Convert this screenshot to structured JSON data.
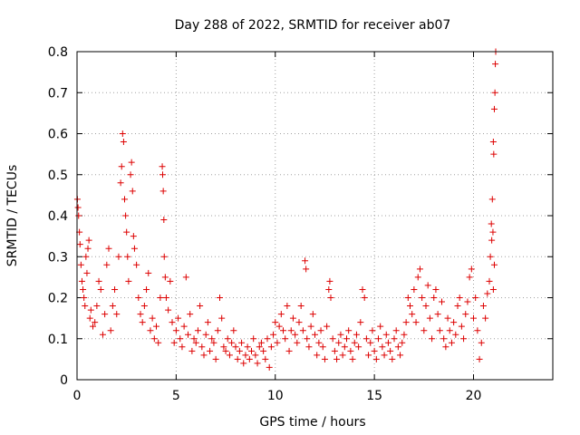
{
  "chart_data": {
    "type": "scatter",
    "title": "Day 288 of 2022, SRMTID for receiver ab07",
    "xlabel": "GPS time / hours",
    "ylabel": "SRMTID / TECUs",
    "xlim": [
      0,
      24
    ],
    "ylim": [
      0,
      0.8
    ],
    "x_ticks": [
      0,
      5,
      10,
      15,
      20
    ],
    "y_ticks": [
      0,
      0.1,
      0.2,
      0.3,
      0.4,
      0.5,
      0.6,
      0.7,
      0.8
    ],
    "x_tick_labels": [
      "0",
      "5",
      "10",
      "15",
      "20"
    ],
    "y_tick_labels": [
      "0",
      "0.1",
      "0.2",
      "0.3",
      "0.4",
      "0.5",
      "0.6",
      "0.7",
      "0.8"
    ],
    "grid": true,
    "marker": "+",
    "series": [
      {
        "name": "SRMTID",
        "color": "#dd0000",
        "points": [
          [
            0.02,
            0.44
          ],
          [
            0.05,
            0.42
          ],
          [
            0.08,
            0.4
          ],
          [
            0.12,
            0.36
          ],
          [
            0.15,
            0.33
          ],
          [
            0.2,
            0.28
          ],
          [
            0.25,
            0.24
          ],
          [
            0.3,
            0.22
          ],
          [
            0.35,
            0.2
          ],
          [
            0.4,
            0.18
          ],
          [
            0.45,
            0.3
          ],
          [
            0.5,
            0.26
          ],
          [
            0.55,
            0.32
          ],
          [
            0.6,
            0.34
          ],
          [
            0.65,
            0.15
          ],
          [
            0.7,
            0.17
          ],
          [
            0.8,
            0.13
          ],
          [
            0.9,
            0.14
          ],
          [
            1.0,
            0.18
          ],
          [
            1.1,
            0.24
          ],
          [
            1.2,
            0.22
          ],
          [
            1.3,
            0.11
          ],
          [
            1.4,
            0.16
          ],
          [
            1.5,
            0.28
          ],
          [
            1.6,
            0.32
          ],
          [
            1.7,
            0.12
          ],
          [
            1.8,
            0.18
          ],
          [
            1.9,
            0.22
          ],
          [
            2.0,
            0.16
          ],
          [
            2.1,
            0.3
          ],
          [
            2.2,
            0.48
          ],
          [
            2.25,
            0.52
          ],
          [
            2.3,
            0.6
          ],
          [
            2.35,
            0.58
          ],
          [
            2.4,
            0.44
          ],
          [
            2.45,
            0.4
          ],
          [
            2.5,
            0.36
          ],
          [
            2.55,
            0.3
          ],
          [
            2.6,
            0.24
          ],
          [
            2.7,
            0.5
          ],
          [
            2.75,
            0.53
          ],
          [
            2.8,
            0.46
          ],
          [
            2.85,
            0.35
          ],
          [
            2.9,
            0.32
          ],
          [
            3.0,
            0.28
          ],
          [
            3.1,
            0.2
          ],
          [
            3.2,
            0.16
          ],
          [
            3.3,
            0.14
          ],
          [
            3.4,
            0.18
          ],
          [
            3.5,
            0.22
          ],
          [
            3.6,
            0.26
          ],
          [
            3.7,
            0.12
          ],
          [
            3.8,
            0.15
          ],
          [
            3.9,
            0.1
          ],
          [
            4.0,
            0.13
          ],
          [
            4.1,
            0.09
          ],
          [
            4.2,
            0.2
          ],
          [
            4.3,
            0.52
          ],
          [
            4.32,
            0.5
          ],
          [
            4.35,
            0.46
          ],
          [
            4.38,
            0.39
          ],
          [
            4.4,
            0.3
          ],
          [
            4.45,
            0.25
          ],
          [
            4.5,
            0.2
          ],
          [
            4.6,
            0.17
          ],
          [
            4.7,
            0.24
          ],
          [
            4.8,
            0.14
          ],
          [
            4.9,
            0.09
          ],
          [
            5.0,
            0.12
          ],
          [
            5.1,
            0.15
          ],
          [
            5.2,
            0.1
          ],
          [
            5.3,
            0.08
          ],
          [
            5.4,
            0.13
          ],
          [
            5.5,
            0.25
          ],
          [
            5.6,
            0.11
          ],
          [
            5.7,
            0.16
          ],
          [
            5.8,
            0.07
          ],
          [
            5.9,
            0.1
          ],
          [
            6.0,
            0.09
          ],
          [
            6.1,
            0.12
          ],
          [
            6.2,
            0.18
          ],
          [
            6.3,
            0.08
          ],
          [
            6.4,
            0.06
          ],
          [
            6.5,
            0.11
          ],
          [
            6.6,
            0.14
          ],
          [
            6.7,
            0.07
          ],
          [
            6.8,
            0.1
          ],
          [
            6.9,
            0.09
          ],
          [
            7.0,
            0.05
          ],
          [
            7.1,
            0.12
          ],
          [
            7.2,
            0.2
          ],
          [
            7.3,
            0.15
          ],
          [
            7.4,
            0.08
          ],
          [
            7.5,
            0.07
          ],
          [
            7.6,
            0.1
          ],
          [
            7.7,
            0.06
          ],
          [
            7.8,
            0.09
          ],
          [
            7.9,
            0.12
          ],
          [
            8.0,
            0.08
          ],
          [
            8.1,
            0.05
          ],
          [
            8.2,
            0.07
          ],
          [
            8.3,
            0.09
          ],
          [
            8.4,
            0.04
          ],
          [
            8.5,
            0.06
          ],
          [
            8.6,
            0.08
          ],
          [
            8.7,
            0.05
          ],
          [
            8.8,
            0.07
          ],
          [
            8.9,
            0.1
          ],
          [
            9.0,
            0.06
          ],
          [
            9.1,
            0.04
          ],
          [
            9.2,
            0.08
          ],
          [
            9.3,
            0.09
          ],
          [
            9.4,
            0.07
          ],
          [
            9.5,
            0.05
          ],
          [
            9.6,
            0.1
          ],
          [
            9.7,
            0.03
          ],
          [
            9.8,
            0.08
          ],
          [
            9.9,
            0.11
          ],
          [
            10.0,
            0.14
          ],
          [
            10.1,
            0.09
          ],
          [
            10.2,
            0.13
          ],
          [
            10.3,
            0.16
          ],
          [
            10.4,
            0.12
          ],
          [
            10.5,
            0.1
          ],
          [
            10.6,
            0.18
          ],
          [
            10.7,
            0.07
          ],
          [
            10.8,
            0.12
          ],
          [
            10.9,
            0.15
          ],
          [
            11.0,
            0.11
          ],
          [
            11.1,
            0.09
          ],
          [
            11.2,
            0.14
          ],
          [
            11.3,
            0.18
          ],
          [
            11.4,
            0.12
          ],
          [
            11.5,
            0.29
          ],
          [
            11.55,
            0.27
          ],
          [
            11.6,
            0.1
          ],
          [
            11.7,
            0.08
          ],
          [
            11.8,
            0.13
          ],
          [
            11.9,
            0.16
          ],
          [
            12.0,
            0.11
          ],
          [
            12.1,
            0.06
          ],
          [
            12.2,
            0.09
          ],
          [
            12.3,
            0.12
          ],
          [
            12.4,
            0.08
          ],
          [
            12.5,
            0.05
          ],
          [
            12.6,
            0.13
          ],
          [
            12.7,
            0.22
          ],
          [
            12.75,
            0.24
          ],
          [
            12.8,
            0.2
          ],
          [
            12.9,
            0.1
          ],
          [
            13.0,
            0.07
          ],
          [
            13.1,
            0.05
          ],
          [
            13.2,
            0.09
          ],
          [
            13.3,
            0.11
          ],
          [
            13.4,
            0.06
          ],
          [
            13.5,
            0.08
          ],
          [
            13.6,
            0.1
          ],
          [
            13.7,
            0.12
          ],
          [
            13.8,
            0.07
          ],
          [
            13.9,
            0.05
          ],
          [
            14.0,
            0.09
          ],
          [
            14.1,
            0.11
          ],
          [
            14.2,
            0.08
          ],
          [
            14.3,
            0.14
          ],
          [
            14.4,
            0.22
          ],
          [
            14.5,
            0.2
          ],
          [
            14.6,
            0.1
          ],
          [
            14.7,
            0.06
          ],
          [
            14.8,
            0.09
          ],
          [
            14.9,
            0.12
          ],
          [
            15.0,
            0.07
          ],
          [
            15.1,
            0.05
          ],
          [
            15.2,
            0.1
          ],
          [
            15.3,
            0.13
          ],
          [
            15.4,
            0.08
          ],
          [
            15.5,
            0.06
          ],
          [
            15.6,
            0.11
          ],
          [
            15.7,
            0.09
          ],
          [
            15.8,
            0.07
          ],
          [
            15.9,
            0.05
          ],
          [
            16.0,
            0.1
          ],
          [
            16.1,
            0.12
          ],
          [
            16.2,
            0.08
          ],
          [
            16.3,
            0.06
          ],
          [
            16.4,
            0.09
          ],
          [
            16.5,
            0.11
          ],
          [
            16.6,
            0.14
          ],
          [
            16.7,
            0.2
          ],
          [
            16.8,
            0.18
          ],
          [
            16.9,
            0.16
          ],
          [
            17.0,
            0.22
          ],
          [
            17.1,
            0.14
          ],
          [
            17.2,
            0.25
          ],
          [
            17.3,
            0.27
          ],
          [
            17.4,
            0.2
          ],
          [
            17.5,
            0.12
          ],
          [
            17.6,
            0.18
          ],
          [
            17.7,
            0.23
          ],
          [
            17.8,
            0.15
          ],
          [
            17.9,
            0.1
          ],
          [
            18.0,
            0.2
          ],
          [
            18.1,
            0.22
          ],
          [
            18.2,
            0.16
          ],
          [
            18.3,
            0.12
          ],
          [
            18.4,
            0.19
          ],
          [
            18.5,
            0.1
          ],
          [
            18.6,
            0.08
          ],
          [
            18.7,
            0.15
          ],
          [
            18.8,
            0.12
          ],
          [
            18.9,
            0.09
          ],
          [
            19.0,
            0.14
          ],
          [
            19.1,
            0.11
          ],
          [
            19.2,
            0.18
          ],
          [
            19.3,
            0.2
          ],
          [
            19.4,
            0.13
          ],
          [
            19.5,
            0.1
          ],
          [
            19.6,
            0.16
          ],
          [
            19.7,
            0.19
          ],
          [
            19.8,
            0.25
          ],
          [
            19.9,
            0.27
          ],
          [
            20.0,
            0.15
          ],
          [
            20.1,
            0.2
          ],
          [
            20.2,
            0.12
          ],
          [
            20.3,
            0.05
          ],
          [
            20.4,
            0.09
          ],
          [
            20.5,
            0.18
          ],
          [
            20.6,
            0.15
          ],
          [
            20.7,
            0.21
          ],
          [
            20.8,
            0.24
          ],
          [
            20.85,
            0.3
          ],
          [
            20.9,
            0.38
          ],
          [
            20.95,
            0.44
          ],
          [
            21.0,
            0.58
          ],
          [
            21.05,
            0.66
          ],
          [
            21.08,
            0.7
          ],
          [
            21.1,
            0.77
          ],
          [
            21.12,
            0.8
          ],
          [
            21.02,
            0.55
          ],
          [
            20.98,
            0.36
          ],
          [
            20.92,
            0.34
          ],
          [
            21.05,
            0.28
          ],
          [
            21.0,
            0.22
          ]
        ]
      }
    ]
  }
}
